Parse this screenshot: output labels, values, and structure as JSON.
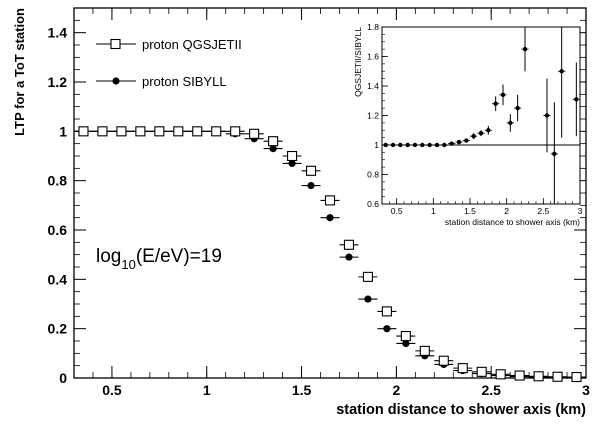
{
  "chart_data": [
    {
      "type": "scatter",
      "xlabel": "station distance to shower axis (km)",
      "ylabel": "LTP for a ToT station",
      "xlim": [
        0.3,
        3.0
      ],
      "ylim": [
        0,
        1.5
      ],
      "x_ticks": [
        "0.5",
        "1",
        "1.5",
        "2",
        "2.5",
        "3"
      ],
      "y_ticks": [
        "0.2",
        "0.4",
        "0.6",
        "0.8",
        "1",
        "1.2",
        "1.4"
      ],
      "legend_position": "top-left",
      "series": [
        {
          "name": "proton QGSJETII",
          "marker": "open-square",
          "x": [
            0.35,
            0.45,
            0.55,
            0.65,
            0.75,
            0.85,
            0.95,
            1.05,
            1.15,
            1.25,
            1.35,
            1.45,
            1.55,
            1.65,
            1.75,
            1.85,
            1.95,
            2.05,
            2.15,
            2.25,
            2.35,
            2.45,
            2.55,
            2.65,
            2.75,
            2.85,
            2.95
          ],
          "y": [
            1.0,
            1.0,
            1.0,
            1.0,
            1.0,
            1.0,
            1.0,
            1.0,
            1.0,
            0.99,
            0.96,
            0.9,
            0.84,
            0.72,
            0.54,
            0.41,
            0.27,
            0.17,
            0.11,
            0.07,
            0.04,
            0.025,
            0.015,
            0.01,
            0.007,
            0.005,
            0.004
          ]
        },
        {
          "name": "proton SIBYLL",
          "marker": "filled-circle",
          "x": [
            0.35,
            0.45,
            0.55,
            0.65,
            0.75,
            0.85,
            0.95,
            1.05,
            1.15,
            1.25,
            1.35,
            1.45,
            1.55,
            1.65,
            1.75,
            1.85,
            1.95,
            2.05,
            2.15,
            2.25,
            2.35,
            2.45,
            2.55,
            2.65,
            2.75,
            2.85,
            2.95
          ],
          "y": [
            1.0,
            1.0,
            1.0,
            1.0,
            1.0,
            1.0,
            1.0,
            1.0,
            0.99,
            0.97,
            0.93,
            0.87,
            0.78,
            0.65,
            0.49,
            0.32,
            0.2,
            0.14,
            0.09,
            0.055,
            0.03,
            0.018,
            0.01,
            0.006,
            0.004,
            0.003,
            0.002
          ]
        }
      ],
      "annotation": {
        "prefix": "log",
        "subscript": "10",
        "suffix": "(E/eV)=19"
      }
    },
    {
      "type": "scatter",
      "xlabel": "station distance to shower axis (km)",
      "ylabel": "QGSJETII/SIBYLL",
      "xlim": [
        0.3,
        3.0
      ],
      "ylim": [
        0.6,
        1.8
      ],
      "x_ticks": [
        "0.5",
        "1",
        "1.5",
        "2",
        "2.5",
        "3"
      ],
      "y_ticks": [
        "0.6",
        "0.8",
        "1",
        "1.2",
        "1.4",
        "1.6",
        "1.8"
      ],
      "reference_line": 1.0,
      "series": [
        {
          "name": "",
          "marker": "filled-circle",
          "x": [
            0.35,
            0.45,
            0.55,
            0.65,
            0.75,
            0.85,
            0.95,
            1.05,
            1.15,
            1.25,
            1.35,
            1.45,
            1.55,
            1.65,
            1.75,
            1.85,
            1.95,
            2.05,
            2.15,
            2.25,
            2.55,
            2.65,
            2.75,
            2.95
          ],
          "y": [
            1.0,
            1.0,
            1.0,
            1.0,
            1.0,
            1.0,
            1.0,
            1.0,
            1.0,
            1.01,
            1.02,
            1.03,
            1.06,
            1.08,
            1.1,
            1.28,
            1.34,
            1.15,
            1.25,
            1.65,
            1.2,
            0.94,
            1.5,
            1.31
          ],
          "yerr": [
            0.005,
            0.005,
            0.005,
            0.005,
            0.005,
            0.005,
            0.005,
            0.005,
            0.005,
            0.005,
            0.01,
            0.01,
            0.02,
            0.02,
            0.03,
            0.05,
            0.07,
            0.06,
            0.09,
            0.15,
            0.25,
            0.35,
            0.45,
            0.25
          ]
        }
      ]
    }
  ]
}
